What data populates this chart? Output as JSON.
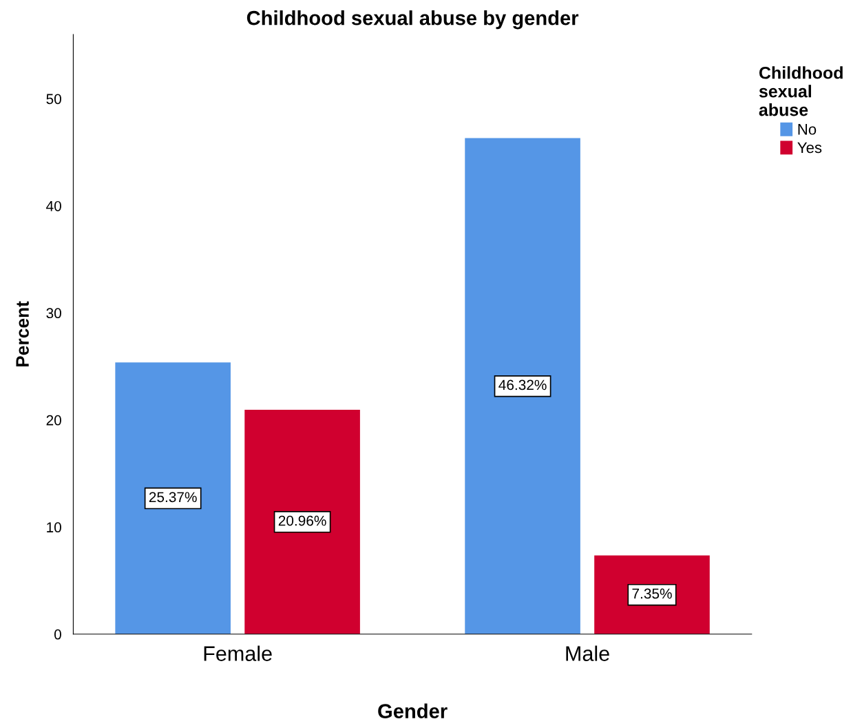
{
  "chart_data": {
    "type": "bar",
    "title": "Childhood sexual abuse by gender",
    "xlabel": "Gender",
    "ylabel": "Percent",
    "legend_title": "Childhood\nsexual\nabuse",
    "categories": [
      "Female",
      "Male"
    ],
    "series": [
      {
        "name": "No",
        "color": "#5596e6",
        "values": [
          25.37,
          46.32
        ],
        "value_labels": [
          "25.37%",
          "46.32%"
        ]
      },
      {
        "name": "Yes",
        "color": "#d0002f",
        "values": [
          20.96,
          7.35
        ],
        "value_labels": [
          "20.96%",
          "7.35%"
        ]
      }
    ],
    "ylim": [
      0,
      56
    ],
    "yticks": [
      0,
      10,
      20,
      30,
      40,
      50
    ],
    "grid": false,
    "legend": "top right"
  }
}
